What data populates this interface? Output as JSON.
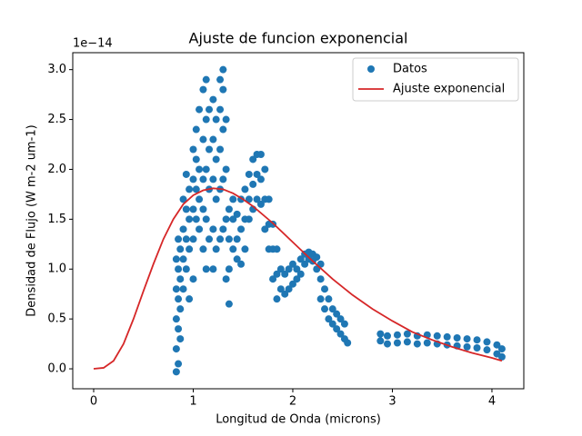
{
  "chart_data": {
    "type": "scatter-fit",
    "title": "Ajuste de funcion exponencial",
    "x_label": "Longitud de Onda (microns)",
    "y_label": "Densidad de Flujo (W m-2 um-1)",
    "y_offset_text": "1e−14",
    "xlim": [
      -0.21,
      4.32
    ],
    "ylim": [
      -0.2,
      3.17
    ],
    "xticks": [
      0,
      1,
      2,
      3,
      4
    ],
    "yticks": [
      {
        "value": 0,
        "label": "0.0"
      },
      {
        "value": 0.5,
        "label": "0.5"
      },
      {
        "value": 1,
        "label": "1.0"
      },
      {
        "value": 1.5,
        "label": "1.5"
      },
      {
        "value": 2,
        "label": "2.0"
      },
      {
        "value": 2.5,
        "label": "2.5"
      },
      {
        "value": 3,
        "label": "3.0"
      }
    ],
    "legend": "upper right",
    "series": [
      {
        "name": "Datos",
        "kind": "scatter",
        "color": "#1f77b4",
        "points": [
          [
            0.83,
            -0.03
          ],
          [
            0.83,
            0.2
          ],
          [
            0.83,
            0.5
          ],
          [
            0.83,
            0.8
          ],
          [
            0.83,
            1.1
          ],
          [
            0.85,
            0.05
          ],
          [
            0.85,
            0.4
          ],
          [
            0.85,
            0.7
          ],
          [
            0.85,
            1.0
          ],
          [
            0.85,
            1.3
          ],
          [
            0.87,
            0.3
          ],
          [
            0.87,
            0.6
          ],
          [
            0.87,
            0.9
          ],
          [
            0.87,
            1.2
          ],
          [
            0.9,
            0.8
          ],
          [
            0.9,
            1.1
          ],
          [
            0.9,
            1.4
          ],
          [
            0.9,
            1.7
          ],
          [
            0.93,
            1.0
          ],
          [
            0.93,
            1.3
          ],
          [
            0.93,
            1.6
          ],
          [
            0.93,
            1.95
          ],
          [
            0.96,
            0.7
          ],
          [
            0.96,
            1.2
          ],
          [
            0.96,
            1.5
          ],
          [
            0.96,
            1.8
          ],
          [
            1.0,
            0.9
          ],
          [
            1.0,
            1.3
          ],
          [
            1.0,
            1.6
          ],
          [
            1.0,
            1.9
          ],
          [
            1.0,
            2.2
          ],
          [
            1.03,
            1.5
          ],
          [
            1.03,
            1.8
          ],
          [
            1.03,
            2.1
          ],
          [
            1.03,
            2.4
          ],
          [
            1.06,
            1.4
          ],
          [
            1.06,
            1.7
          ],
          [
            1.06,
            2.0
          ],
          [
            1.06,
            2.6
          ],
          [
            1.1,
            1.2
          ],
          [
            1.1,
            1.6
          ],
          [
            1.1,
            1.9
          ],
          [
            1.1,
            2.3
          ],
          [
            1.1,
            2.8
          ],
          [
            1.13,
            1.0
          ],
          [
            1.13,
            1.5
          ],
          [
            1.13,
            2.0
          ],
          [
            1.13,
            2.5
          ],
          [
            1.13,
            2.9
          ],
          [
            1.16,
            1.3
          ],
          [
            1.16,
            1.8
          ],
          [
            1.16,
            2.2
          ],
          [
            1.16,
            2.6
          ],
          [
            1.2,
            1.0
          ],
          [
            1.2,
            1.4
          ],
          [
            1.2,
            1.9
          ],
          [
            1.2,
            2.3
          ],
          [
            1.2,
            2.7
          ],
          [
            1.23,
            1.2
          ],
          [
            1.23,
            1.7
          ],
          [
            1.23,
            2.1
          ],
          [
            1.23,
            2.5
          ],
          [
            1.27,
            1.3
          ],
          [
            1.27,
            1.8
          ],
          [
            1.27,
            2.2
          ],
          [
            1.27,
            2.6
          ],
          [
            1.27,
            2.9
          ],
          [
            1.3,
            1.4
          ],
          [
            1.3,
            1.9
          ],
          [
            1.3,
            2.4
          ],
          [
            1.3,
            2.8
          ],
          [
            1.3,
            3.0
          ],
          [
            1.33,
            0.9
          ],
          [
            1.33,
            1.5
          ],
          [
            1.33,
            2.0
          ],
          [
            1.33,
            2.5
          ],
          [
            1.36,
            0.65
          ],
          [
            1.36,
            1.0
          ],
          [
            1.36,
            1.3
          ],
          [
            1.36,
            1.6
          ],
          [
            1.4,
            1.2
          ],
          [
            1.4,
            1.5
          ],
          [
            1.4,
            1.7
          ],
          [
            1.44,
            1.1
          ],
          [
            1.44,
            1.3
          ],
          [
            1.44,
            1.55
          ],
          [
            1.48,
            1.05
          ],
          [
            1.48,
            1.4
          ],
          [
            1.48,
            1.7
          ],
          [
            1.52,
            1.2
          ],
          [
            1.52,
            1.5
          ],
          [
            1.52,
            1.8
          ],
          [
            1.56,
            1.5
          ],
          [
            1.56,
            1.7
          ],
          [
            1.56,
            1.95
          ],
          [
            1.6,
            1.6
          ],
          [
            1.6,
            1.85
          ],
          [
            1.6,
            2.1
          ],
          [
            1.64,
            1.7
          ],
          [
            1.64,
            1.95
          ],
          [
            1.64,
            2.15
          ],
          [
            1.68,
            1.65
          ],
          [
            1.68,
            1.9
          ],
          [
            1.68,
            2.15
          ],
          [
            1.72,
            1.4
          ],
          [
            1.72,
            1.7
          ],
          [
            1.72,
            2.0
          ],
          [
            1.76,
            1.2
          ],
          [
            1.76,
            1.45
          ],
          [
            1.76,
            1.7
          ],
          [
            1.8,
            0.9
          ],
          [
            1.8,
            1.2
          ],
          [
            1.8,
            1.45
          ],
          [
            1.84,
            0.7
          ],
          [
            1.84,
            0.95
          ],
          [
            1.84,
            1.2
          ],
          [
            1.88,
            0.8
          ],
          [
            1.88,
            1.0
          ],
          [
            1.92,
            0.75
          ],
          [
            1.92,
            0.95
          ],
          [
            1.96,
            0.8
          ],
          [
            1.96,
            1.0
          ],
          [
            2.0,
            0.85
          ],
          [
            2.0,
            1.05
          ],
          [
            2.04,
            0.9
          ],
          [
            2.04,
            1.0
          ],
          [
            2.08,
            0.95
          ],
          [
            2.08,
            1.1
          ],
          [
            2.12,
            1.05
          ],
          [
            2.12,
            1.15
          ],
          [
            2.16,
            1.1
          ],
          [
            2.16,
            1.17
          ],
          [
            2.2,
            1.08
          ],
          [
            2.2,
            1.15
          ],
          [
            2.24,
            1.0
          ],
          [
            2.24,
            1.12
          ],
          [
            2.28,
            0.7
          ],
          [
            2.28,
            0.9
          ],
          [
            2.28,
            1.05
          ],
          [
            2.32,
            0.6
          ],
          [
            2.32,
            0.8
          ],
          [
            2.36,
            0.5
          ],
          [
            2.36,
            0.7
          ],
          [
            2.4,
            0.45
          ],
          [
            2.4,
            0.6
          ],
          [
            2.44,
            0.4
          ],
          [
            2.44,
            0.55
          ],
          [
            2.48,
            0.35
          ],
          [
            2.48,
            0.5
          ],
          [
            2.52,
            0.3
          ],
          [
            2.52,
            0.45
          ],
          [
            2.55,
            0.26
          ],
          [
            2.88,
            0.28
          ],
          [
            2.88,
            0.35
          ],
          [
            2.95,
            0.25
          ],
          [
            2.95,
            0.33
          ],
          [
            3.05,
            0.26
          ],
          [
            3.05,
            0.34
          ],
          [
            3.15,
            0.27
          ],
          [
            3.15,
            0.35
          ],
          [
            3.25,
            0.25
          ],
          [
            3.25,
            0.33
          ],
          [
            3.35,
            0.26
          ],
          [
            3.35,
            0.34
          ],
          [
            3.45,
            0.25
          ],
          [
            3.45,
            0.33
          ],
          [
            3.55,
            0.24
          ],
          [
            3.55,
            0.32
          ],
          [
            3.65,
            0.23
          ],
          [
            3.65,
            0.31
          ],
          [
            3.75,
            0.22
          ],
          [
            3.75,
            0.3
          ],
          [
            3.85,
            0.21
          ],
          [
            3.85,
            0.29
          ],
          [
            3.95,
            0.19
          ],
          [
            3.95,
            0.27
          ],
          [
            4.05,
            0.15
          ],
          [
            4.05,
            0.24
          ],
          [
            4.1,
            0.12
          ],
          [
            4.1,
            0.2
          ]
        ]
      },
      {
        "name": "Ajuste exponencial",
        "kind": "line",
        "color": "#d62728",
        "x": [
          0,
          0.1,
          0.2,
          0.3,
          0.4,
          0.5,
          0.6,
          0.7,
          0.8,
          0.9,
          1.0,
          1.1,
          1.2,
          1.3,
          1.4,
          1.5,
          1.6,
          1.8,
          2.0,
          2.2,
          2.4,
          2.6,
          2.8,
          3.0,
          3.2,
          3.4,
          3.6,
          3.8,
          4.0,
          4.1
        ],
        "values": [
          0,
          0.01,
          0.08,
          0.25,
          0.5,
          0.78,
          1.05,
          1.3,
          1.5,
          1.65,
          1.74,
          1.79,
          1.81,
          1.8,
          1.76,
          1.7,
          1.63,
          1.46,
          1.27,
          1.08,
          0.9,
          0.74,
          0.6,
          0.48,
          0.37,
          0.29,
          0.22,
          0.16,
          0.11,
          0.08
        ]
      }
    ]
  }
}
